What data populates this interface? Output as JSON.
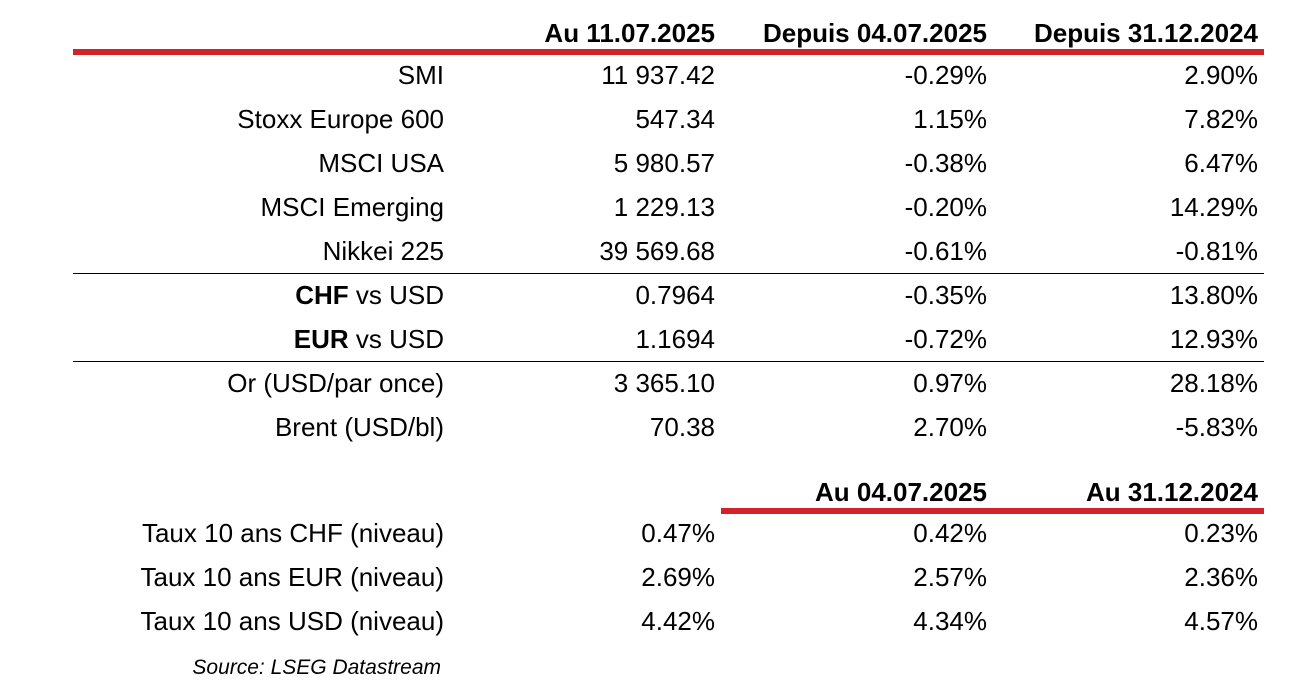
{
  "header": {
    "col1": "Au 11.07.2025",
    "col2": "Depuis 04.07.2025",
    "col3": "Depuis 31.12.2024"
  },
  "indices": [
    {
      "label": "SMI",
      "v1": "11 937.42",
      "v2": "-0.29%",
      "v3": "2.90%"
    },
    {
      "label": "Stoxx Europe 600",
      "v1": "547.34",
      "v2": "1.15%",
      "v3": "7.82%"
    },
    {
      "label": "MSCI USA",
      "v1": "5 980.57",
      "v2": "-0.38%",
      "v3": "6.47%"
    },
    {
      "label": "MSCI Emerging",
      "v1": "1 229.13",
      "v2": "-0.20%",
      "v3": "14.29%"
    },
    {
      "label": "Nikkei 225",
      "v1": "39 569.68",
      "v2": "-0.61%",
      "v3": "-0.81%"
    }
  ],
  "fx": [
    {
      "currency": "CHF",
      "suffix": " vs USD",
      "v1": "0.7964",
      "v2": "-0.35%",
      "v3": "13.80%"
    },
    {
      "currency": "EUR",
      "suffix": " vs USD",
      "v1": "1.1694",
      "v2": "-0.72%",
      "v3": "12.93%"
    }
  ],
  "commodities": [
    {
      "label": "Or (USD/par once)",
      "v1": "3 365.10",
      "v2": "0.97%",
      "v3": "28.18%"
    },
    {
      "label": "Brent (USD/bl)",
      "v1": "70.38",
      "v2": "2.70%",
      "v3": "-5.83%"
    }
  ],
  "rates_header": {
    "col2": "Au 04.07.2025",
    "col3": "Au 31.12.2024"
  },
  "rates": [
    {
      "label": "Taux 10 ans CHF (niveau)",
      "v1": "0.47%",
      "v2": "0.42%",
      "v3": "0.23%"
    },
    {
      "label": "Taux 10 ans EUR (niveau)",
      "v1": "2.69%",
      "v2": "2.57%",
      "v3": "2.36%"
    },
    {
      "label": "Taux 10 ans USD (niveau)",
      "v1": "4.42%",
      "v2": "4.34%",
      "v3": "4.57%"
    }
  ],
  "source": "Source: LSEG Datastream",
  "colors": {
    "accent_red": "#d2232a",
    "rule": "#000000"
  }
}
